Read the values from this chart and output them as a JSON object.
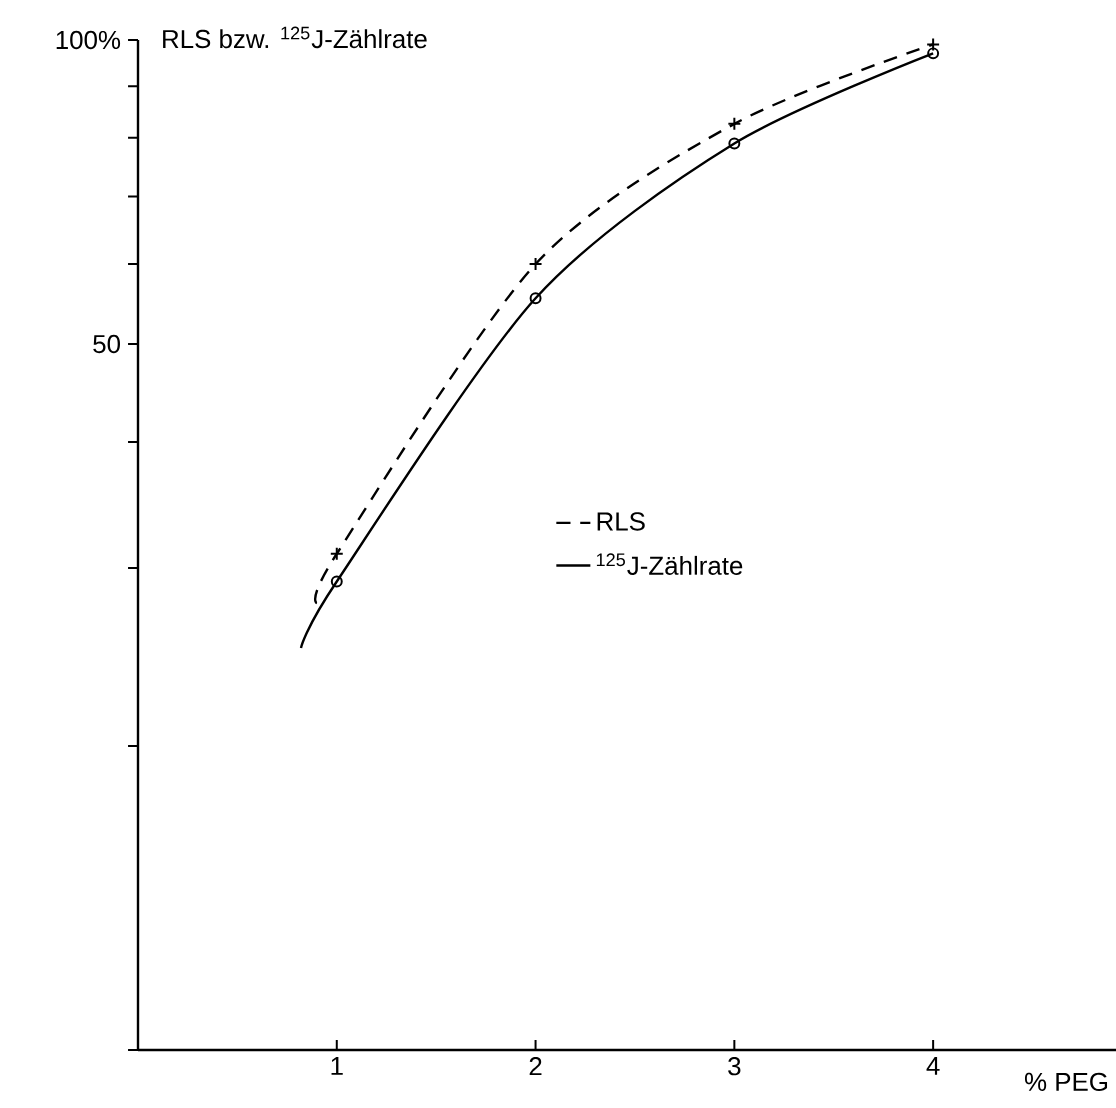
{
  "chart_data": {
    "type": "line",
    "ylabel": "RLS bzw. $^{125}$J-Zählrate",
    "xlabel": "% PEG",
    "log": "y",
    "xlim": [
      0,
      4.92
    ],
    "ylim": [
      10,
      100
    ],
    "xticks": [
      1,
      2,
      3,
      4
    ],
    "yticks": [
      {
        "value": 10,
        "label": null
      },
      {
        "value": 20,
        "label": null
      },
      {
        "value": 30,
        "label": null
      },
      {
        "value": 40,
        "label": null
      },
      {
        "value": 50,
        "label": "50"
      },
      {
        "value": 60,
        "label": null
      },
      {
        "value": 70,
        "label": null
      },
      {
        "value": 80,
        "label": null
      },
      {
        "value": 90,
        "label": null
      },
      {
        "value": 100,
        "label": "100%"
      }
    ],
    "legend": "right",
    "grid": false,
    "series": [
      {
        "name": "RLS",
        "color": "#000000",
        "line_style": "dashed",
        "marker": "none",
        "x": [
          0.9,
          1,
          2,
          3,
          4
        ],
        "values": [
          27.7,
          31,
          60,
          82.6,
          99
        ]
      },
      {
        "name": "$^{125}$J-Zählrate",
        "color": "#000000",
        "line_style": "solid",
        "marker": "none",
        "x": [
          0.82,
          1,
          2,
          3,
          4
        ],
        "values": [
          25,
          29.1,
          55.5,
          79,
          97
        ]
      },
      {
        "type": "scatter",
        "color": "#000000",
        "marker": "cross",
        "x": [
          1,
          2,
          3,
          4
        ],
        "values": [
          31,
          60,
          82.6,
          99
        ]
      },
      {
        "type": "scatter",
        "color": "#000000",
        "marker": "circle",
        "x": [
          1,
          2,
          3,
          4
        ],
        "values": [
          29.1,
          55.5,
          79,
          97
        ]
      }
    ]
  }
}
